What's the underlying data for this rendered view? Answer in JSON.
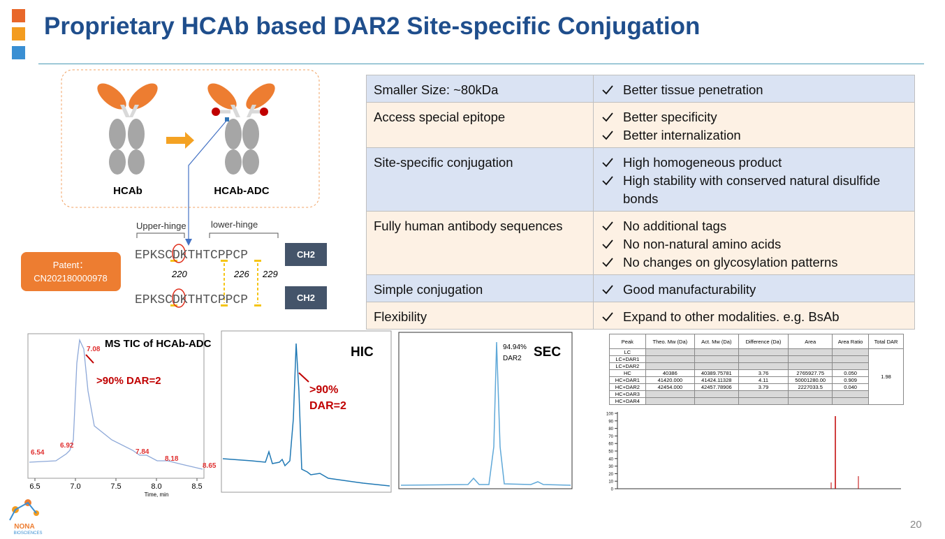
{
  "header": {
    "title": "Proprietary HCAb based DAR2 Site-specific Conjugation"
  },
  "diagram": {
    "left_label": "HCAb",
    "right_label": "HCAb-ADC",
    "upper_hinge": "Upper-hinge",
    "lower_hinge": "lower-hinge",
    "sequence_1": "EPKSCDKTHTCPPCP",
    "sequence_2": "EPKSCDKTHTCPPCP",
    "ch2_1": "CH2",
    "ch2_2": "CH2",
    "position_1": "220",
    "position_2": "226",
    "position_3": "229",
    "patent_label": "Patent：",
    "patent_number": "CN202180000978"
  },
  "table": {
    "rows": [
      {
        "label": "Smaller Size: ~80kDa",
        "points": [
          "Better tissue penetration"
        ]
      },
      {
        "label": "Access special epitope",
        "points": [
          "Better specificity",
          "Better internalization"
        ]
      },
      {
        "label": "Site-specific conjugation",
        "points": [
          "High homogeneous product",
          "High stability with conserved natural disulfide bonds"
        ]
      },
      {
        "label": "Fully human antibody sequences",
        "points": [
          "No additional tags",
          "No non-natural amino acids",
          "No changes on glycosylation patterns"
        ]
      },
      {
        "label": "Simple conjugation",
        "points": [
          "Good manufacturability"
        ]
      },
      {
        "label": "Flexibility",
        "points": [
          "Expand to other modalities.  e.g. BsAb"
        ]
      }
    ]
  },
  "ms_chart": {
    "title": "MS TIC of HCAb-ADC",
    "annotation": ">90% DAR=2",
    "peaks": [
      "6.54",
      "6.92",
      "7.08",
      "7.84",
      "8.18",
      "8.65"
    ],
    "xticks": [
      "6.5",
      "7.0",
      "7.5",
      "8.0",
      "8.5"
    ],
    "xlabel": "Time, min"
  },
  "hic_chart": {
    "title": "HIC",
    "annotation_1": ">90%",
    "annotation_2": "DAR=2"
  },
  "sec_chart": {
    "title": "SEC",
    "peak_percent": "94.94%",
    "peak_label": "DAR2"
  },
  "mass_table": {
    "headers": [
      "Peak",
      "Theo. Mw (Da)",
      "Act. Mw (Da)",
      "Difference (Da)",
      "Area",
      "Area Ratio",
      "Total DAR"
    ],
    "rows": [
      [
        "LC"
      ],
      [
        "LC+DAR1"
      ],
      [
        "LC+DAR2"
      ],
      [
        "HC",
        "40386",
        "40389.75781",
        "3.76",
        "2765927.75",
        "0.050"
      ],
      [
        "HC+DAR1",
        "41420.000",
        "41424.11328",
        "4.11",
        "50001280.00",
        "0.909"
      ],
      [
        "HC+DAR2",
        "42454.000",
        "42457.78906",
        "3.79",
        "2227033.5",
        "0.040"
      ],
      [
        "HC+DAR3"
      ],
      [
        "HC+DAR4"
      ]
    ],
    "total_dar": "1.98"
  },
  "spectrum": {
    "yticks": [
      "0",
      "10",
      "20",
      "30",
      "40",
      "50",
      "60",
      "70",
      "80",
      "90",
      "100"
    ]
  },
  "footer": {
    "page": "20",
    "logo": "NONA",
    "logo_sub": "BIOSCIENCES"
  }
}
